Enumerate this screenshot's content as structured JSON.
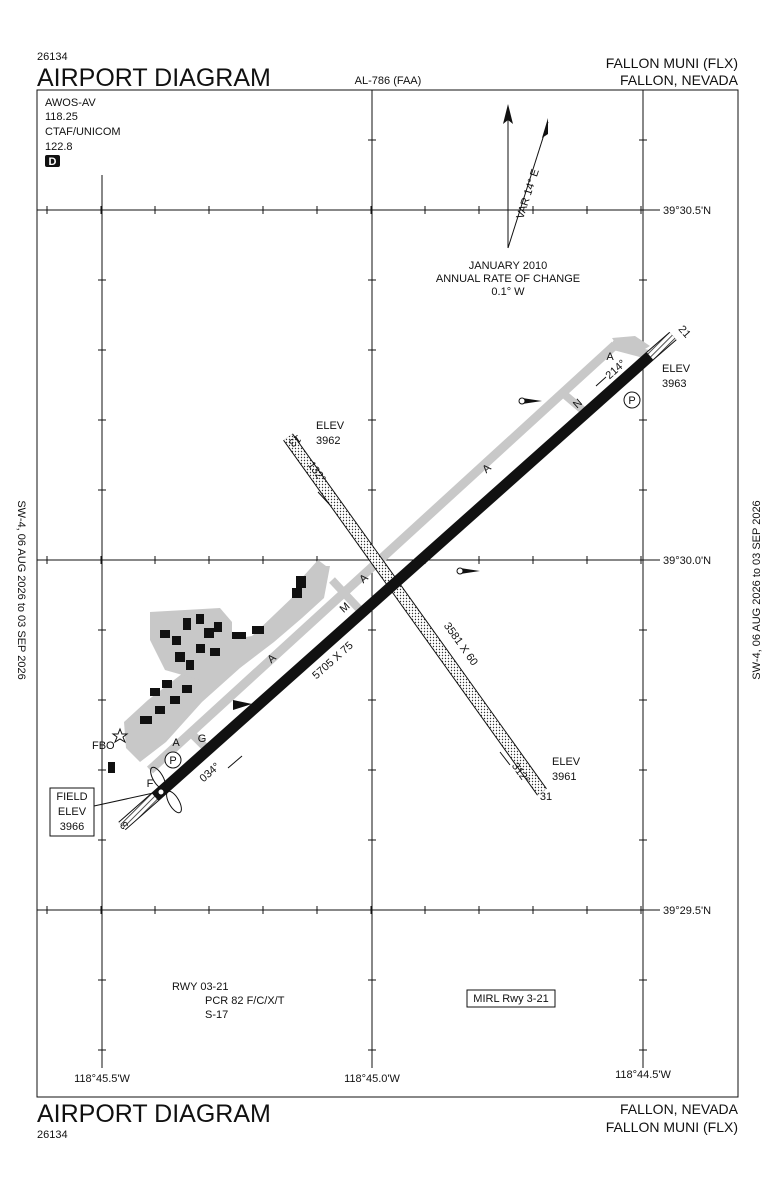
{
  "header": {
    "chart_number": 26134,
    "title": "AIRPORT DIAGRAM",
    "procedure": "AL-786 (FAA)",
    "airport": "FALLON MUNI (FLX)",
    "location": "FALLON, NEVADA"
  },
  "communications": {
    "weather": "AWOS-AV",
    "weather_freq": 118.25,
    "ctaf": "CTAF/UNICOM",
    "ctaf_freq": 122.8,
    "class": "D"
  },
  "effective_dates": {
    "left": "SW-4, 06 AUG 2026 to 03 SEP 2026",
    "right": "SW-4, 06 AUG 2026 to 03 SEP 2026"
  },
  "latitudes": [
    "39°30.5'N",
    "39°30.0'N",
    "39°29.5'N"
  ],
  "longitudes": [
    "118°45.5'W",
    "118°45.0'W",
    "118°44.5'W"
  ],
  "variation": {
    "label": "VAR 14° E",
    "date": "JANUARY 2010",
    "rate_title": "ANNUAL RATE OF CHANGE",
    "rate": "0.1° W"
  },
  "runways": [
    {
      "dimensions": "5705 X 75",
      "ends": [
        {
          "number": 3,
          "heading": "034°"
        },
        {
          "number": 21,
          "heading": "214°",
          "elev_label": "ELEV",
          "elev": 3963
        }
      ]
    },
    {
      "dimensions": "3581 X 60",
      "ends": [
        {
          "number": 13,
          "heading": "132°",
          "elev_label": "ELEV",
          "elev": 3962
        },
        {
          "number": 31,
          "heading": "312°",
          "elev_label": "ELEV",
          "elev": 3961
        }
      ]
    }
  ],
  "taxiways": [
    "A",
    "N",
    "A",
    "A",
    "M",
    "A",
    "G",
    "A",
    "F"
  ],
  "parking": [
    "P",
    "P"
  ],
  "fbo": "FBO",
  "field_elevation": {
    "line1": "FIELD",
    "line2": "ELEV",
    "value": 3966
  },
  "runway_notes": {
    "runway": "RWY 03-21",
    "pcr": "PCR 82 F/C/X/T",
    "strength": "S-17"
  },
  "lighting": "MIRL Rwy 3-21",
  "footer": {
    "title": "AIRPORT DIAGRAM",
    "chart_number": 26134,
    "location": "FALLON, NEVADA",
    "airport": "FALLON MUNI (FLX)"
  }
}
